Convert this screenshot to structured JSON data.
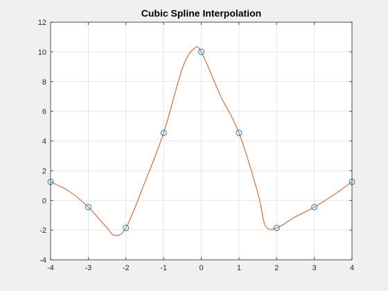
{
  "figure": {
    "background": "#f0f0f0",
    "axes_background": "#ffffff"
  },
  "chart_data": {
    "type": "line",
    "title": "Cubic Spline Interpolation",
    "xlabel": "",
    "ylabel": "",
    "xlim": [
      -4,
      4
    ],
    "ylim": [
      -4,
      12
    ],
    "xticks": [
      -4,
      -3,
      -2,
      -1,
      0,
      1,
      2,
      3,
      4
    ],
    "yticks": [
      -4,
      -2,
      0,
      2,
      4,
      6,
      8,
      10,
      12
    ],
    "grid": true,
    "series": [
      {
        "kind": "markers",
        "marker": "circle",
        "color": "#0072bd",
        "x": [
          -4,
          -3,
          -2,
          -1,
          0,
          1,
          2,
          3,
          4
        ],
        "y": [
          1.25,
          -0.45,
          -1.85,
          4.55,
          10.0,
          4.55,
          -1.85,
          -0.45,
          1.25
        ]
      },
      {
        "kind": "line",
        "color": "#d95319",
        "x": [
          -4,
          -3.5,
          -3,
          -2.5,
          -2.3,
          -2,
          -1.5,
          -1,
          -0.5,
          -0.2,
          0,
          0.5,
          1,
          1.5,
          1.7,
          2,
          2.5,
          3,
          3.5,
          4
        ],
        "y": [
          1.25,
          0.6,
          -0.45,
          -1.85,
          -2.35,
          -1.85,
          1.2,
          4.55,
          8.9,
          10.2,
          10.0,
          7.1,
          4.55,
          0.5,
          -1.7,
          -1.85,
          -1.1,
          -0.45,
          0.35,
          1.25
        ]
      }
    ]
  }
}
